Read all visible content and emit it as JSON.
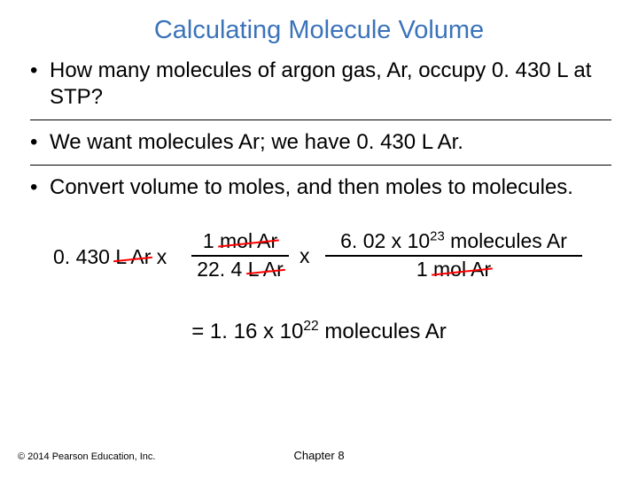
{
  "title": {
    "text": "Calculating Molecule Volume",
    "color": "#3b73b9"
  },
  "bullets": {
    "b1": "How many molecules of argon gas, Ar, occupy 0. 430 L at STP?",
    "b2": "We want molecules Ar; we have 0. 430 L Ar.",
    "b3": "Convert volume to moles, and then moles to molecules."
  },
  "equation": {
    "start_qty": "0. 430",
    "start_unit": "L Ar",
    "times": "x",
    "frac1": {
      "num_val": "1",
      "num_unit": "mol Ar",
      "den_val": "22. 4",
      "den_unit": "L Ar"
    },
    "frac2": {
      "num_val": "6. 02 x 10",
      "num_exp": "23",
      "num_tail": " molecules Ar",
      "den_val": "1",
      "den_unit": "mol Ar"
    }
  },
  "result": {
    "prefix": "= 1. 16 x 10",
    "exp": "22",
    "tail": " molecules Ar"
  },
  "footer": {
    "left": "© 2014 Pearson Education, Inc.",
    "center": "Chapter 8"
  },
  "colors": {
    "title": "#3b73b9",
    "strike": "#ff0000",
    "text": "#000000",
    "bg": "#ffffff"
  }
}
